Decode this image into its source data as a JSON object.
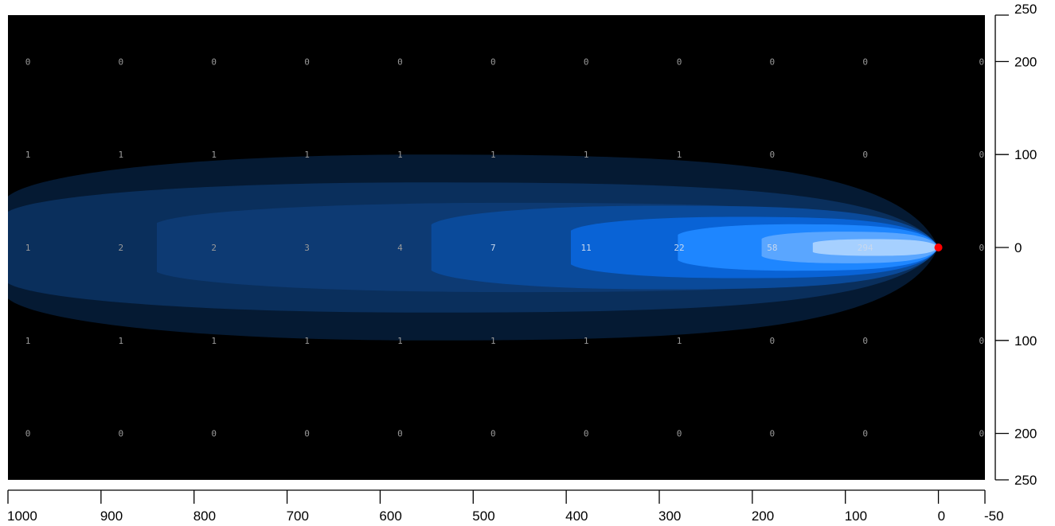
{
  "chart_data": {
    "type": "heatmap",
    "title": "",
    "xlabel": "",
    "ylabel": "",
    "xlim": [
      1000,
      -50
    ],
    "ylim": [
      -250,
      250
    ],
    "x_ticks": [
      1000,
      900,
      800,
      700,
      600,
      500,
      400,
      300,
      200,
      100,
      0,
      -50
    ],
    "x_tick_labels": [
      "1000",
      "900",
      "800",
      "700",
      "600",
      "500",
      "400",
      "300",
      "200",
      "100",
      "0",
      "-50"
    ],
    "y_ticks": [
      250,
      200,
      100,
      0,
      -100,
      -200,
      -250
    ],
    "y_tick_labels": [
      "250",
      "200",
      "100",
      "0",
      "100",
      "200",
      "250"
    ],
    "grid_x": [
      1000,
      900,
      800,
      700,
      600,
      500,
      400,
      300,
      200,
      100,
      -25
    ],
    "grid_y": [
      200,
      100,
      0,
      -100,
      -200
    ],
    "grid_values": [
      [
        "0",
        "0",
        "0",
        "0",
        "0",
        "0",
        "0",
        "0",
        "0",
        "0",
        "0"
      ],
      [
        "1",
        "1",
        "1",
        "1",
        "1",
        "1",
        "1",
        "1",
        "0",
        "0",
        "0"
      ],
      [
        "1",
        "2",
        "2",
        "3",
        "4",
        "7",
        "11",
        "22",
        "58",
        "294",
        "0"
      ],
      [
        "1",
        "1",
        "1",
        "1",
        "1",
        "1",
        "1",
        "1",
        "0",
        "0",
        "0"
      ],
      [
        "0",
        "0",
        "0",
        "0",
        "0",
        "0",
        "0",
        "0",
        "0",
        "0",
        "0"
      ]
    ],
    "source": {
      "x": 0,
      "y": 0,
      "color": "#ff0000"
    },
    "contour_bands": [
      {
        "x_far": 1000,
        "half_width": 100,
        "color": "#051a33"
      },
      {
        "x_far": 1000,
        "half_width": 70,
        "color": "#0a2f5c"
      },
      {
        "x_far": 840,
        "half_width": 48,
        "color": "#0d3a73"
      },
      {
        "x_far": 545,
        "half_width": 45,
        "color": "#0a4a9a"
      },
      {
        "x_far": 395,
        "half_width": 33,
        "color": "#0963d6"
      },
      {
        "x_far": 280,
        "half_width": 25,
        "color": "#1e86ff"
      },
      {
        "x_far": 190,
        "half_width": 17,
        "color": "#5aa6ff"
      },
      {
        "x_far": 135,
        "half_width": 9,
        "color": "#a6d0ff"
      }
    ],
    "background_color": "#000000",
    "label_color": "#9a9a9a",
    "label_color_bright": "#c8d8ee",
    "grid": false,
    "legend": "none"
  }
}
